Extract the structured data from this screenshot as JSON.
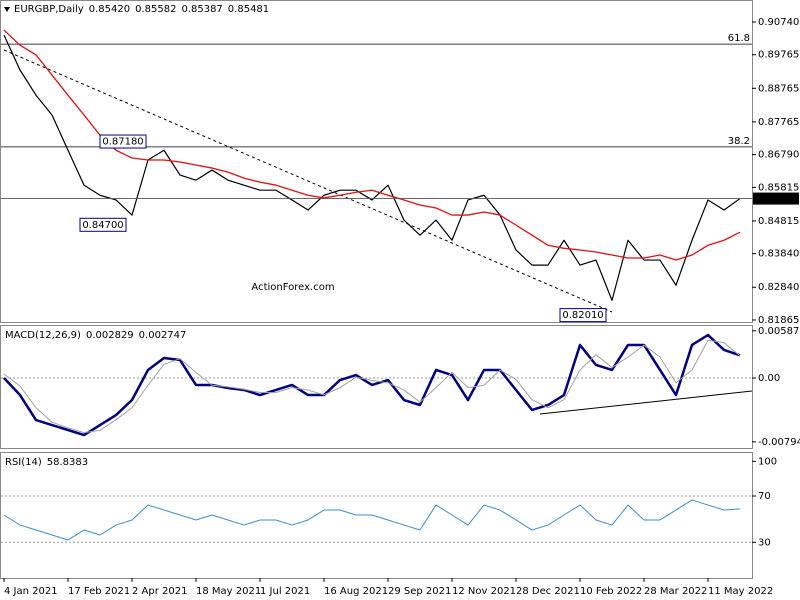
{
  "chart_data": [
    {
      "type": "line",
      "title": "EURGBP,Daily",
      "ohlc": [
        "0.85420",
        "0.85582",
        "0.85387",
        "0.85481"
      ],
      "watermark": "ActionForex.com",
      "categories": [
        "4 Jan 2021",
        null,
        null,
        null,
        "17 Feb 2021",
        null,
        null,
        null,
        "2 Apr 2021",
        null,
        null,
        null,
        "18 May 2021",
        null,
        null,
        null,
        "1 Jul 2021",
        null,
        null,
        null,
        "16 Aug 2021",
        null,
        null,
        null,
        "29 Sep 2021",
        null,
        null,
        null,
        "12 Nov 2021",
        null,
        null,
        null,
        "28 Dec 2021",
        null,
        null,
        null,
        "10 Feb 2022",
        null,
        null,
        null,
        "28 Mar 2022",
        null,
        null,
        null,
        "11 May 2022",
        null,
        null
      ],
      "series": [
        {
          "color": "#000000",
          "values": [
            0.9035,
            0.8931,
            0.8856,
            0.8797,
            0.8692,
            0.8588,
            0.8558,
            0.8544,
            0.8499,
            0.8663,
            0.8692,
            0.8618,
            0.8603,
            0.8633,
            0.8603,
            0.8588,
            0.8573,
            0.8573,
            0.8544,
            0.8514,
            0.8558,
            0.8573,
            0.8573,
            0.8544,
            0.8588,
            0.8484,
            0.8439,
            0.8484,
            0.8424,
            0.8544,
            0.8558,
            0.8499,
            0.8395,
            0.835,
            0.835,
            0.8424,
            0.835,
            0.8365,
            0.8245,
            0.8424,
            0.8365,
            0.8365,
            0.829,
            0.8424,
            0.8544,
            0.8514,
            0.85481
          ]
        },
        {
          "color": "#e01010",
          "values": [
            0.905,
            0.9005,
            0.8976,
            0.8916,
            0.8856,
            0.8797,
            0.8737,
            0.8692,
            0.8669,
            0.8663,
            0.8663,
            0.8657,
            0.8648,
            0.8639,
            0.8627,
            0.8609,
            0.8597,
            0.8588,
            0.8573,
            0.8558,
            0.855,
            0.8558,
            0.8567,
            0.8573,
            0.8558,
            0.8544,
            0.8529,
            0.852,
            0.8499,
            0.8499,
            0.8508,
            0.8499,
            0.8469,
            0.8439,
            0.8409,
            0.84,
            0.8395,
            0.8389,
            0.838,
            0.8371,
            0.8371,
            0.838,
            0.8365,
            0.838,
            0.8409,
            0.8424,
            0.8448
          ]
        }
      ],
      "ylim": [
        0.81805,
        0.91395
      ],
      "yticks": [
        {
          "value": 0.9074,
          "label": "0.90740"
        },
        0.89765,
        0.88765,
        0.87765,
        {
          "value": 0.8679,
          "label": "0.86790"
        },
        0.85815,
        0.84815,
        {
          "value": 0.8384,
          "label": "0.83840"
        },
        {
          "value": 0.8284,
          "label": "0.82840"
        },
        0.81865
      ],
      "levels": [
        {
          "label": "61.8",
          "value": 0.9008
        },
        {
          "label": "38.2",
          "value": 0.8702
        }
      ],
      "last": {
        "label": "0.85481",
        "value": 0.85481
      },
      "annotations": [
        {
          "label": "0.87180",
          "value": 0.8718
        },
        {
          "label": "0.84700",
          "value": 0.847
        },
        {
          "label": "0.82010",
          "value": 0.8201
        }
      ]
    },
    {
      "type": "line",
      "title": "MACD(12,26,9)",
      "readings": [
        "0.002829",
        "0.002747"
      ],
      "series": [
        {
          "color": "#000080",
          "values": [
            0,
            -0.00212,
            -0.00523,
            -0.00585,
            -0.00647,
            -0.0071,
            -0.00585,
            -0.00461,
            -0.00274,
            0.001,
            0.00249,
            0.00224,
            -0.00087,
            -0.00087,
            -0.00125,
            -0.00149,
            -0.00212,
            -0.00149,
            -0.00087,
            -0.00212,
            -0.00212,
            -0.00025,
            0.00037,
            -0.00087,
            -0.00025,
            -0.00274,
            -0.00336,
            0.001,
            0.00037,
            -0.00274,
            0.001,
            0.001,
            -0.00149,
            -0.00398,
            -0.00336,
            -0.00212,
            0.00411,
            0.00162,
            0.001,
            0.00411,
            0.00411,
            0.001,
            -0.00212,
            0.00411,
            0.00535,
            0.00349,
            0.002829
          ]
        },
        {
          "color": "#a0a0a0",
          "values": [
            0.0005,
            -0.001,
            -0.0037,
            -0.0055,
            -0.0062,
            -0.0068,
            -0.0065,
            -0.0052,
            -0.0037,
            -0.0009,
            0.0017,
            0.0024,
            0.0007,
            -0.0009,
            -0.0011,
            -0.0014,
            -0.0018,
            -0.0018,
            -0.0012,
            -0.0015,
            -0.0021,
            -0.0012,
            0.0001,
            -0.0003,
            -0.0006,
            -0.0015,
            -0.003,
            -0.0012,
            0.0007,
            -0.0012,
            -0.0009,
            0.001,
            -0.0002,
            -0.0027,
            -0.0037,
            -0.0027,
            0.001,
            0.0029,
            0.0013,
            0.0026,
            0.0041,
            0.0026,
            -0.0006,
            0.001,
            0.0047,
            0.0044,
            0.002747
          ]
        }
      ],
      "ylim": [
        -0.00871,
        0.00647
      ],
      "yticks": [
        0.005872,
        {
          "value": 0,
          "label": "0.00"
        },
        -0.007945
      ]
    },
    {
      "type": "line",
      "title": "RSI(14)",
      "readings": [
        "58.8383"
      ],
      "series": [
        {
          "color": "#3c8cd0",
          "values": [
            53.6,
            44.9,
            40.6,
            36.3,
            32.0,
            40.6,
            36.3,
            44.9,
            49.3,
            62.2,
            57.9,
            53.6,
            49.3,
            53.6,
            49.3,
            44.9,
            49.3,
            49.3,
            44.9,
            49.3,
            57.9,
            57.9,
            53.6,
            53.6,
            49.3,
            44.9,
            40.6,
            62.2,
            53.6,
            44.9,
            62.2,
            57.9,
            49.3,
            40.6,
            44.9,
            53.6,
            62.2,
            49.3,
            44.9,
            62.2,
            49.3,
            49.3,
            57.9,
            66.6,
            62.2,
            57.9,
            58.8383
          ]
        }
      ],
      "ylim": [
        0,
        102
      ],
      "yticks": [
        100,
        70,
        30
      ]
    }
  ]
}
